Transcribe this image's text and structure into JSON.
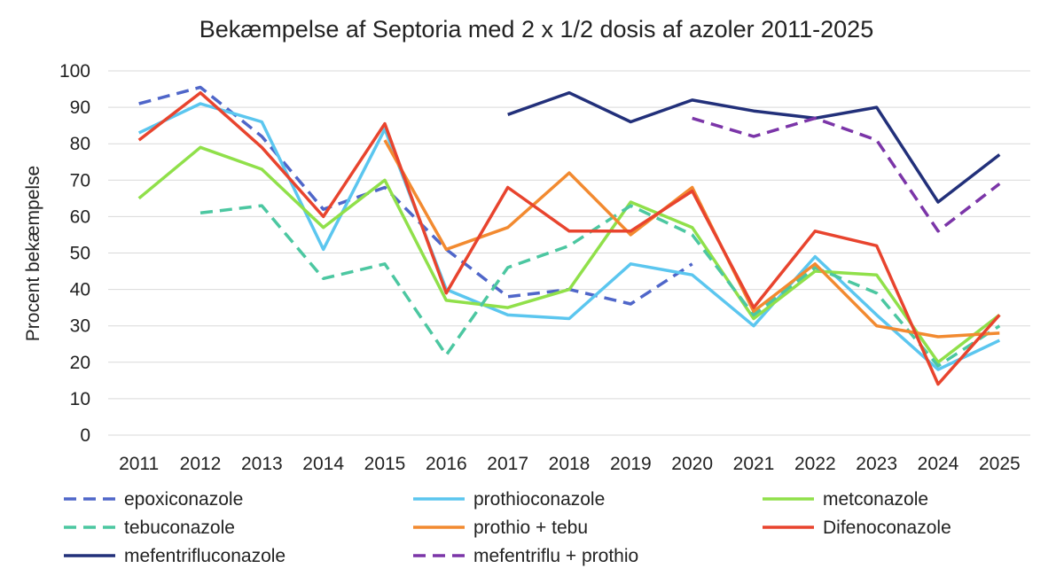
{
  "chart_data": {
    "type": "line",
    "title": "Bekæmpelse af Septoria med 2 x 1/2 dosis af azoler 2011-2025",
    "ylabel": "Procent bekæmpelse",
    "xlabel": "",
    "ylim": [
      0,
      100
    ],
    "yticks": [
      0,
      10,
      20,
      30,
      40,
      50,
      60,
      70,
      80,
      90,
      100
    ],
    "x": [
      "2011",
      "2012",
      "2013",
      "2014",
      "2015",
      "2016",
      "2017",
      "2018",
      "2019",
      "2020",
      "2021",
      "2022",
      "2023",
      "2024",
      "2025"
    ],
    "grid": "horizontal",
    "legend_position": "bottom",
    "series": [
      {
        "name": "epoxiconazole",
        "color": "#4f66c9",
        "dash": "dashed",
        "values": [
          91,
          95.5,
          82,
          62,
          68,
          51,
          38,
          40,
          36,
          47,
          null,
          null,
          null,
          null,
          null
        ]
      },
      {
        "name": "prothioconazole",
        "color": "#5bc6ef",
        "dash": "solid",
        "values": [
          83,
          91,
          86,
          51,
          84,
          40,
          33,
          32,
          47,
          44,
          30,
          49,
          33,
          18,
          26
        ]
      },
      {
        "name": "metconazole",
        "color": "#90e04a",
        "dash": "solid",
        "values": [
          65,
          79,
          73,
          57,
          70,
          37,
          35,
          40,
          64,
          57,
          32,
          45,
          44,
          20,
          33
        ]
      },
      {
        "name": "tebuconazole",
        "color": "#4cc7a1",
        "dash": "dashed",
        "values": [
          null,
          61,
          63,
          43,
          47,
          22,
          46,
          52,
          63,
          55,
          33,
          46,
          39,
          19,
          30
        ]
      },
      {
        "name": "prothio + tebu",
        "color": "#f28a30",
        "dash": "solid",
        "values": [
          null,
          null,
          null,
          null,
          81,
          51,
          57,
          72,
          55,
          68,
          34,
          47,
          30,
          27,
          28
        ]
      },
      {
        "name": "Difenoconazole",
        "color": "#e8442e",
        "dash": "solid",
        "values": [
          81,
          94,
          79,
          60,
          85.5,
          39,
          68,
          56,
          56,
          67,
          35,
          56,
          52,
          14,
          33
        ]
      },
      {
        "name": "mefentrifluconazole",
        "color": "#22307a",
        "dash": "solid",
        "values": [
          null,
          null,
          null,
          null,
          null,
          null,
          88,
          94,
          86,
          92,
          89,
          87,
          90,
          64,
          77
        ]
      },
      {
        "name": "mefentriflu + prothio",
        "color": "#7b35a8",
        "dash": "dashed",
        "values": [
          null,
          null,
          null,
          null,
          null,
          null,
          null,
          null,
          null,
          87,
          82,
          87,
          81,
          56,
          69
        ]
      }
    ]
  }
}
